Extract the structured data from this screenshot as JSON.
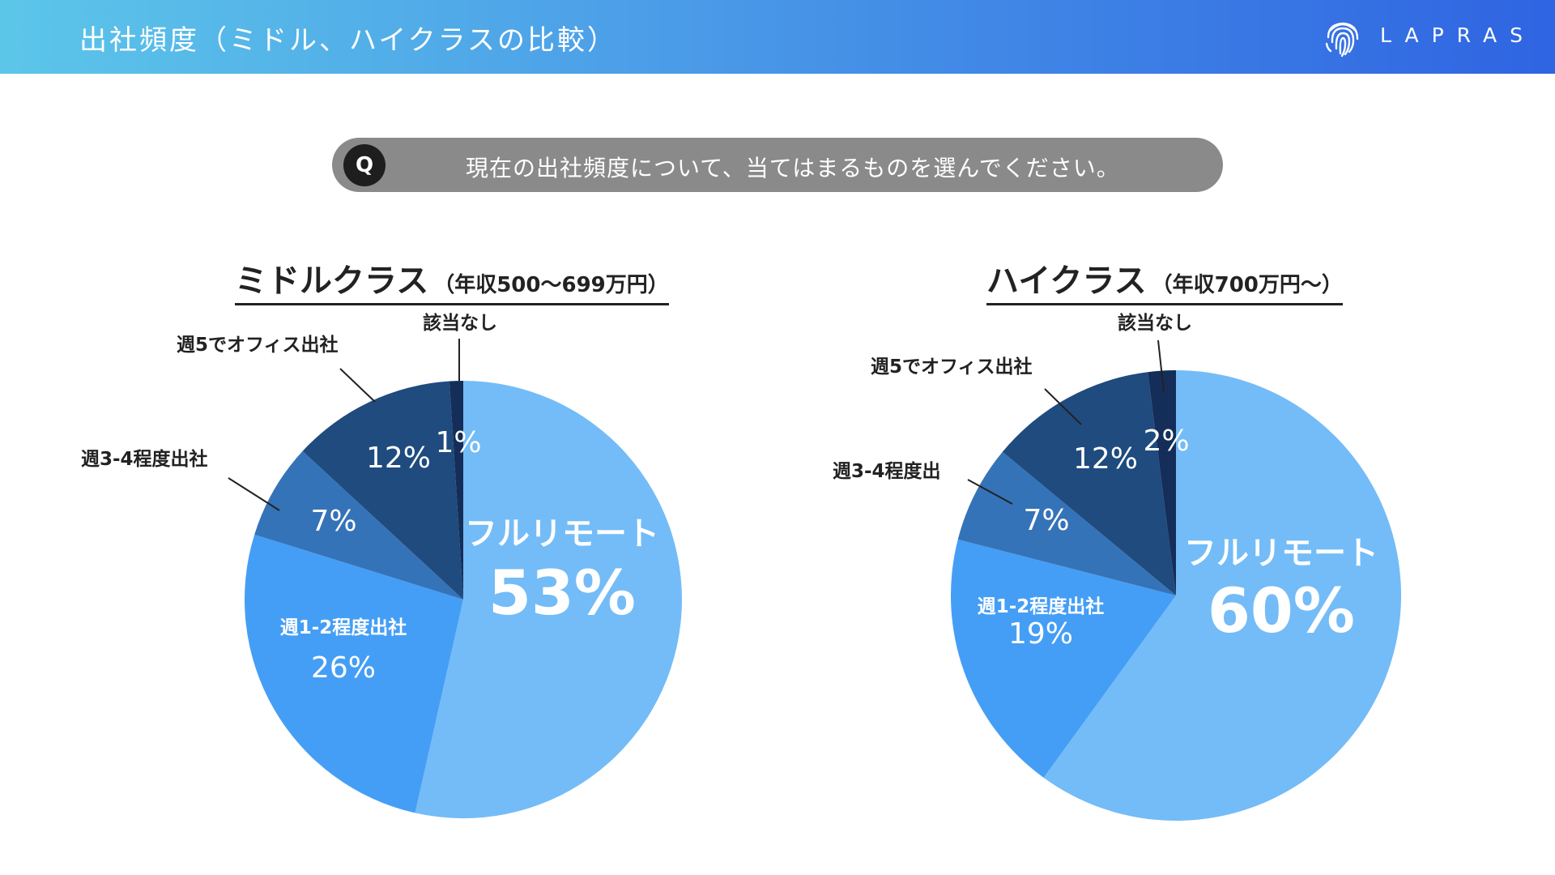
{
  "header": {
    "title": "出社頻度（ミドル、ハイクラスの比較）",
    "logo_text": "LAPRAS",
    "logo_icon": "fingerprint-icon"
  },
  "question": {
    "badge": "Q",
    "text": "現在の出社頻度について、当てはまるものを選んでください。"
  },
  "colors": {
    "full_remote": "#73bcf7",
    "week_1_2": "#459ef5",
    "week_3_4": "#3573b8",
    "week_5": "#1f4b7e",
    "none": "#142e59"
  },
  "chart_data": [
    {
      "type": "pie",
      "title": "ミドルクラス",
      "subtitle": "（年収500〜699万円）",
      "slices": [
        {
          "label": "フルリモート",
          "value": 53,
          "value_label": "53%"
        },
        {
          "label": "週1-2程度出社",
          "value": 26,
          "value_label": "26%"
        },
        {
          "label": "週3-4程度出社",
          "value": 7,
          "value_label": "7%"
        },
        {
          "label": "週5でオフィス出社",
          "value": 12,
          "value_label": "12%"
        },
        {
          "label": "該当なし",
          "value": 1,
          "value_label": "1%"
        }
      ]
    },
    {
      "type": "pie",
      "title": "ハイクラス",
      "subtitle": "（年収700万円〜）",
      "slices": [
        {
          "label": "フルリモート",
          "value": 60,
          "value_label": "60%"
        },
        {
          "label": "週1-2程度出社",
          "value": 19,
          "value_label": "19%"
        },
        {
          "label": "週3-4程度出",
          "value": 7,
          "value_label": "7%"
        },
        {
          "label": "週5でオフィス出社",
          "value": 12,
          "value_label": "12%"
        },
        {
          "label": "該当なし",
          "value": 2,
          "value_label": "2%"
        }
      ]
    }
  ]
}
